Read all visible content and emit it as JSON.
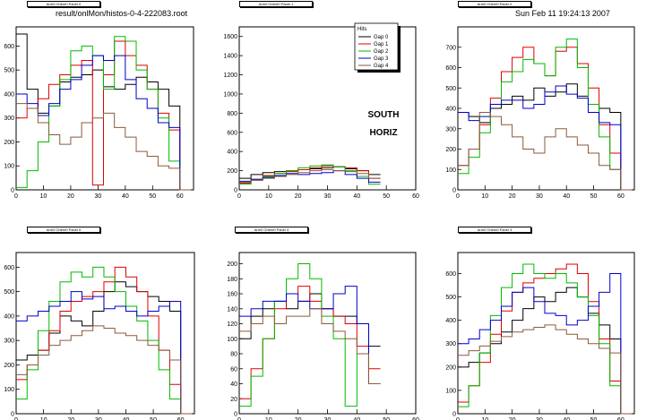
{
  "header": {
    "filename": "result/onlMon/histos-0-4-222083.root",
    "timestamp": "Sun Feb 11 19:24:13 2007"
  },
  "colors": {
    "Gap 0": "#000000",
    "Gap 1": "#dd0000",
    "Gap 2": "#00bb00",
    "Gap 3": "#0000cc",
    "Gap 4": "#8b5a3c"
  },
  "chart_data": [
    {
      "type": "line",
      "title": "Arm0 Orient0 Panel 0",
      "xlim": [
        0,
        65
      ],
      "ylim": [
        0,
        680
      ],
      "xticks": [
        0,
        10,
        20,
        30,
        40,
        50,
        60
      ],
      "yticks": [
        0,
        100,
        200,
        300,
        400,
        500,
        600
      ],
      "x": [
        0,
        4,
        8,
        12,
        16,
        20,
        24,
        28,
        32,
        36,
        40,
        44,
        48,
        52,
        56,
        60
      ],
      "series": [
        {
          "key": "Gap 0",
          "values": [
            650,
            420,
            320,
            350,
            450,
            470,
            480,
            500,
            430,
            420,
            440,
            470,
            450,
            420,
            350,
            0
          ]
        },
        {
          "key": "Gap 1",
          "values": [
            300,
            340,
            380,
            440,
            480,
            520,
            540,
            20,
            480,
            620,
            560,
            520,
            420,
            320,
            250,
            0
          ]
        },
        {
          "key": "Gap 2",
          "values": [
            10,
            80,
            200,
            350,
            460,
            580,
            600,
            560,
            420,
            640,
            620,
            500,
            420,
            300,
            120,
            0
          ]
        },
        {
          "key": "Gap 3",
          "values": [
            400,
            360,
            310,
            360,
            420,
            460,
            520,
            560,
            540,
            560,
            460,
            380,
            340,
            280,
            260,
            0
          ]
        },
        {
          "key": "Gap 4",
          "values": [
            360,
            340,
            280,
            230,
            190,
            220,
            280,
            300,
            320,
            260,
            220,
            160,
            140,
            100,
            90,
            0
          ]
        }
      ]
    },
    {
      "type": "line",
      "title": "Arm0 Orient0 Panel 1",
      "xlim": [
        0,
        60
      ],
      "ylim": [
        0,
        1700
      ],
      "xticks": [
        0,
        10,
        20,
        30,
        40,
        50,
        60
      ],
      "yticks": [
        0,
        200,
        400,
        600,
        800,
        1000,
        1200,
        1400,
        1600
      ],
      "legend_title": "Hits",
      "annotation": [
        "SOUTH",
        "HORIZ"
      ],
      "x": [
        0,
        4,
        8,
        12,
        16,
        20,
        24,
        28,
        32,
        36,
        40,
        44
      ],
      "series": [
        {
          "key": "Gap 0",
          "values": [
            120,
            160,
            180,
            190,
            200,
            210,
            220,
            230,
            240,
            220,
            200,
            160
          ]
        },
        {
          "key": "Gap 1",
          "values": [
            70,
            110,
            150,
            170,
            190,
            210,
            230,
            250,
            240,
            230,
            200,
            120
          ]
        },
        {
          "key": "Gap 2",
          "values": [
            60,
            100,
            140,
            170,
            200,
            230,
            250,
            260,
            240,
            200,
            140,
            60
          ]
        },
        {
          "key": "Gap 3",
          "values": [
            90,
            110,
            130,
            150,
            170,
            160,
            170,
            180,
            200,
            160,
            120,
            80
          ]
        },
        {
          "key": "Gap 4",
          "values": [
            80,
            100,
            120,
            140,
            160,
            180,
            200,
            210,
            200,
            190,
            170,
            120
          ]
        }
      ]
    },
    {
      "type": "line",
      "title": "Arm0 Orient0 Panel 2",
      "xlim": [
        0,
        65
      ],
      "ylim": [
        0,
        800
      ],
      "xticks": [
        0,
        10,
        20,
        30,
        40,
        50,
        60
      ],
      "yticks": [
        0,
        100,
        200,
        300,
        400,
        500,
        600,
        700
      ],
      "x": [
        0,
        4,
        8,
        12,
        16,
        20,
        24,
        28,
        32,
        36,
        40,
        44,
        48,
        52,
        56,
        60
      ],
      "series": [
        {
          "key": "Gap 0",
          "values": [
            380,
            360,
            330,
            400,
            420,
            460,
            440,
            500,
            460,
            480,
            520,
            460,
            420,
            400,
            380,
            0
          ]
        },
        {
          "key": "Gap 1",
          "values": [
            120,
            200,
            320,
            450,
            580,
            650,
            700,
            620,
            560,
            680,
            700,
            620,
            500,
            320,
            180,
            0
          ]
        },
        {
          "key": "Gap 2",
          "values": [
            80,
            160,
            280,
            420,
            530,
            580,
            640,
            620,
            560,
            700,
            740,
            600,
            420,
            260,
            100,
            0
          ]
        },
        {
          "key": "Gap 3",
          "values": [
            380,
            340,
            360,
            420,
            440,
            440,
            400,
            420,
            480,
            510,
            470,
            450,
            380,
            330,
            320,
            0
          ]
        },
        {
          "key": "Gap 4",
          "values": [
            120,
            200,
            380,
            360,
            320,
            260,
            200,
            180,
            260,
            300,
            260,
            220,
            180,
            120,
            100,
            0
          ]
        }
      ]
    },
    {
      "type": "line",
      "title": "Arm0 Orient0 Panel 5",
      "xlim": [
        0,
        65
      ],
      "ylim": [
        0,
        660
      ],
      "xticks": [
        0,
        10,
        20,
        30,
        40,
        50,
        60
      ],
      "yticks": [
        0,
        100,
        200,
        300,
        400,
        500,
        600
      ],
      "x": [
        0,
        4,
        8,
        12,
        16,
        20,
        24,
        28,
        32,
        36,
        40,
        44,
        48,
        52,
        56,
        60
      ],
      "series": [
        {
          "key": "Gap 0",
          "values": [
            220,
            240,
            260,
            330,
            400,
            380,
            360,
            420,
            500,
            540,
            520,
            500,
            480,
            460,
            420,
            0
          ]
        },
        {
          "key": "Gap 1",
          "values": [
            140,
            200,
            260,
            340,
            420,
            460,
            480,
            500,
            540,
            600,
            560,
            500,
            400,
            260,
            120,
            0
          ]
        },
        {
          "key": "Gap 2",
          "values": [
            60,
            180,
            340,
            460,
            540,
            580,
            560,
            600,
            560,
            500,
            440,
            380,
            300,
            180,
            60,
            0
          ]
        },
        {
          "key": "Gap 3",
          "values": [
            380,
            400,
            420,
            440,
            460,
            500,
            470,
            480,
            430,
            440,
            420,
            400,
            420,
            440,
            460,
            0
          ]
        },
        {
          "key": "Gap 4",
          "values": [
            160,
            200,
            240,
            280,
            300,
            320,
            340,
            360,
            350,
            330,
            320,
            300,
            280,
            260,
            220,
            0
          ]
        }
      ]
    },
    {
      "type": "line",
      "title": "Arm0 Orient0 Panel 4",
      "xlim": [
        0,
        60
      ],
      "ylim": [
        0,
        215
      ],
      "xticks": [
        0,
        10,
        20,
        30,
        40,
        50,
        60
      ],
      "yticks": [
        0,
        20,
        40,
        60,
        80,
        100,
        120,
        140,
        160,
        180,
        200
      ],
      "x": [
        0,
        4,
        8,
        12,
        16,
        20,
        24,
        28,
        32,
        36,
        40,
        44
      ],
      "series": [
        {
          "key": "Gap 0",
          "values": [
            100,
            130,
            140,
            150,
            140,
            150,
            160,
            140,
            130,
            130,
            120,
            90
          ]
        },
        {
          "key": "Gap 1",
          "values": [
            20,
            60,
            100,
            140,
            160,
            170,
            150,
            140,
            130,
            120,
            90,
            60
          ]
        },
        {
          "key": "Gap 2",
          "values": [
            10,
            50,
            100,
            150,
            180,
            200,
            180,
            130,
            100,
            10,
            80,
            40
          ]
        },
        {
          "key": "Gap 3",
          "values": [
            130,
            140,
            150,
            150,
            160,
            150,
            140,
            140,
            160,
            170,
            120,
            40
          ]
        },
        {
          "key": "Gap 4",
          "values": [
            110,
            120,
            130,
            120,
            130,
            130,
            140,
            120,
            110,
            100,
            80,
            40
          ]
        }
      ]
    },
    {
      "type": "line",
      "title": "Arm0 Orient0 Panel 3",
      "xlim": [
        0,
        65
      ],
      "ylim": [
        0,
        690
      ],
      "xticks": [
        0,
        10,
        20,
        30,
        40,
        50,
        60
      ],
      "yticks": [
        0,
        100,
        200,
        300,
        400,
        500,
        600
      ],
      "x": [
        0,
        4,
        8,
        12,
        16,
        20,
        24,
        28,
        32,
        36,
        40,
        44,
        48,
        52,
        56,
        60
      ],
      "series": [
        {
          "key": "Gap 0",
          "values": [
            200,
            220,
            260,
            300,
            350,
            400,
            450,
            500,
            480,
            520,
            540,
            500,
            430,
            380,
            320,
            0
          ]
        },
        {
          "key": "Gap 1",
          "values": [
            50,
            120,
            220,
            340,
            440,
            520,
            560,
            580,
            600,
            620,
            640,
            600,
            480,
            320,
            140,
            0
          ]
        },
        {
          "key": "Gap 2",
          "values": [
            30,
            120,
            260,
            420,
            540,
            600,
            640,
            600,
            580,
            600,
            560,
            500,
            420,
            300,
            120,
            0
          ]
        },
        {
          "key": "Gap 3",
          "values": [
            300,
            320,
            360,
            400,
            460,
            520,
            540,
            480,
            430,
            420,
            380,
            400,
            460,
            520,
            600,
            0
          ]
        },
        {
          "key": "Gap 4",
          "values": [
            250,
            270,
            290,
            310,
            330,
            350,
            360,
            370,
            380,
            360,
            340,
            320,
            300,
            280,
            260,
            0
          ]
        }
      ]
    }
  ]
}
